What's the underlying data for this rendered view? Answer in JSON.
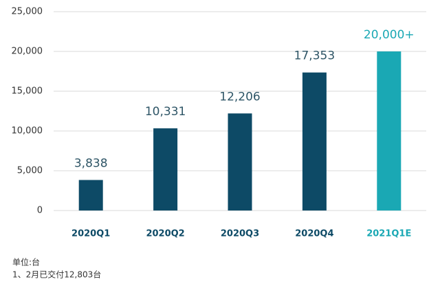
{
  "chart_data": {
    "type": "bar",
    "categories": [
      "2020Q1",
      "2020Q2",
      "2020Q3",
      "2020Q4",
      "2021Q1E"
    ],
    "values": [
      3838,
      10331,
      12206,
      17353,
      20000
    ],
    "value_labels": [
      "3,838",
      "10,331",
      "12,206",
      "17,353",
      "20,000+"
    ],
    "colors": [
      "#0d4a66",
      "#0d4a66",
      "#0d4a66",
      "#0d4a66",
      "#1aa8b4"
    ],
    "label_colors": [
      "#0d4a66",
      "#0d4a66",
      "#0d4a66",
      "#0d4a66",
      "#1aa8b4"
    ],
    "ylim": [
      0,
      25000
    ],
    "yticks": [
      0,
      {
        "value": 5000,
        "label": "5,000"
      },
      {
        "value": 10000,
        "label": "10,000"
      },
      {
        "value": 15000,
        "label": "15,000"
      },
      {
        "value": 20000,
        "label": "20,000"
      },
      {
        "value": 25000,
        "label": "25,000"
      }
    ],
    "grid": true,
    "notes": [
      "单位:台",
      "1、2月已交付12,803台"
    ]
  }
}
